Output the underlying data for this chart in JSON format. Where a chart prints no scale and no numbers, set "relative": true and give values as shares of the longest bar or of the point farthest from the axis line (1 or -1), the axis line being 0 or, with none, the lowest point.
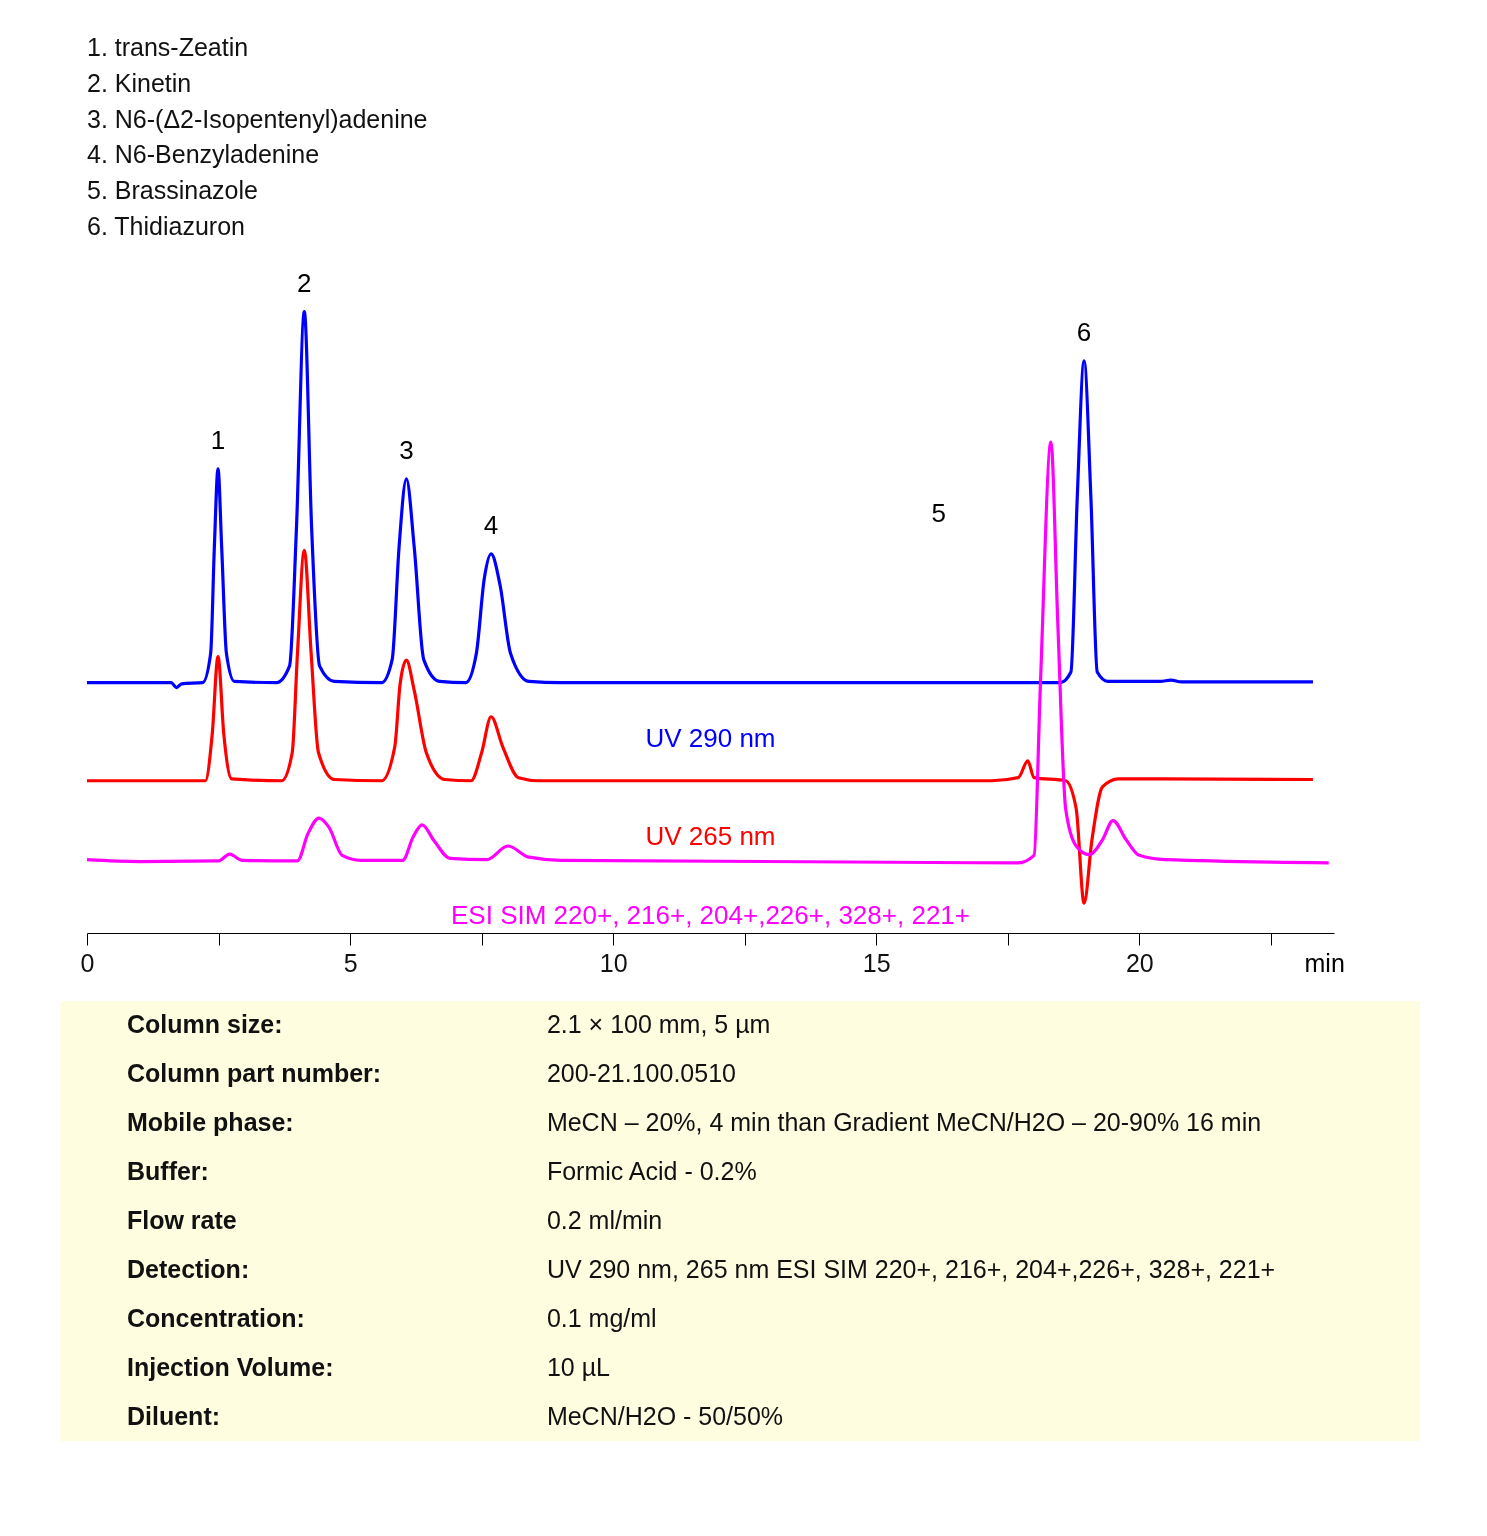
{
  "chart_data": {
    "type": "line",
    "relative": true,
    "xlabel": "min",
    "xlim": [
      0,
      23.7
    ],
    "xticks": [
      0,
      {
        "value": 2.5,
        "label": null
      },
      5,
      {
        "value": 7.5,
        "label": null
      },
      10,
      {
        "value": 12.5,
        "label": null
      },
      15,
      {
        "value": 17.5,
        "label": null
      },
      20,
      {
        "value": 22.5,
        "label": null
      }
    ],
    "grid": false,
    "legend": false,
    "marker": "none",
    "line_style": "solid",
    "series": [
      {
        "name": "UV 290 nm",
        "color": "#0000ff",
        "x": [
          0,
          1.6,
          1.7,
          1.8,
          2.2,
          2.35,
          2.42,
          2.49,
          2.56,
          2.65,
          2.8,
          3.6,
          3.85,
          3.98,
          4.13,
          4.27,
          4.42,
          4.7,
          5.6,
          5.8,
          5.93,
          6.07,
          6.22,
          6.4,
          6.7,
          7.2,
          7.4,
          7.55,
          7.68,
          7.85,
          8.05,
          8.4,
          9.0,
          18.5,
          18.7,
          18.82,
          18.95,
          19.08,
          19.2,
          19.4,
          20.4,
          20.6,
          20.8,
          23.3
        ],
        "values": [
          0.403,
          0.403,
          0.395,
          0.401,
          0.403,
          0.45,
          0.62,
          0.747,
          0.62,
          0.45,
          0.405,
          0.403,
          0.43,
          0.65,
          1.0,
          0.65,
          0.43,
          0.405,
          0.403,
          0.44,
          0.62,
          0.731,
          0.62,
          0.44,
          0.405,
          0.403,
          0.45,
          0.57,
          0.61,
          0.56,
          0.45,
          0.405,
          0.403,
          0.403,
          0.42,
          0.7,
          0.921,
          0.7,
          0.42,
          0.405,
          0.405,
          0.407,
          0.404,
          0.404
        ]
      },
      {
        "name": "UV 265 nm",
        "color": "#ff0000",
        "x": [
          0,
          2.25,
          2.38,
          2.49,
          2.6,
          2.75,
          3.7,
          3.9,
          4.0,
          4.13,
          4.26,
          4.4,
          4.7,
          5.6,
          5.85,
          5.95,
          6.07,
          6.22,
          6.45,
          6.8,
          7.3,
          7.5,
          7.68,
          7.9,
          8.2,
          8.6,
          17.2,
          17.7,
          17.88,
          18.0,
          18.6,
          18.8,
          18.95,
          19.1,
          19.3,
          19.6,
          20.4,
          23.3
        ],
        "values": [
          0.245,
          0.245,
          0.32,
          0.445,
          0.32,
          0.248,
          0.245,
          0.29,
          0.45,
          0.616,
          0.45,
          0.29,
          0.247,
          0.245,
          0.3,
          0.4,
          0.439,
          0.39,
          0.29,
          0.247,
          0.245,
          0.29,
          0.348,
          0.3,
          0.25,
          0.245,
          0.245,
          0.25,
          0.277,
          0.25,
          0.245,
          0.2,
          0.048,
          0.15,
          0.235,
          0.248,
          0.248,
          0.247
        ]
      },
      {
        "name": "ESI SIM 220+, 216+, 204+,226+, 328+, 221+",
        "color": "#ff00ff",
        "x": [
          0,
          1,
          2.5,
          2.71,
          2.95,
          4.0,
          4.2,
          4.41,
          4.6,
          4.85,
          5.2,
          6.0,
          6.2,
          6.37,
          6.6,
          6.9,
          7.6,
          8.0,
          8.4,
          9,
          17.7,
          18.0,
          18.12,
          18.32,
          18.45,
          18.6,
          18.8,
          19.05,
          19.3,
          19.5,
          19.75,
          20.0,
          20.5,
          23.6
        ],
        "values": [
          0.118,
          0.115,
          0.116,
          0.127,
          0.117,
          0.116,
          0.16,
          0.185,
          0.17,
          0.125,
          0.117,
          0.117,
          0.155,
          0.174,
          0.148,
          0.12,
          0.118,
          0.14,
          0.122,
          0.117,
          0.113,
          0.125,
          0.4,
          0.79,
          0.5,
          0.2,
          0.14,
          0.126,
          0.15,
          0.181,
          0.15,
          0.125,
          0.118,
          0.113
        ]
      }
    ],
    "annotations": [
      "1.  trans-Zeatin",
      "2.  Kinetin",
      "3.  N6-(Δ2-Isopentenyl)adenine",
      "4.  N6-Benzyladenine",
      "5.  Brassinazole",
      "6.  Thidiazuron",
      {
        "text": "1",
        "x": 2.49,
        "y": 0.747
      },
      {
        "text": "2",
        "x": 4.13,
        "y": 1.0
      },
      {
        "text": "3",
        "x": 6.07,
        "y": 0.731
      },
      {
        "text": "4",
        "x": 7.68,
        "y": 0.61
      },
      {
        "text": "6",
        "x": 18.95,
        "y": 0.921
      },
      "5",
      "Column size:",
      "2.1 × 100 mm, 5 µm",
      "Column part number:",
      "200-21.100.0510",
      "Mobile phase:",
      "MeCN – 20%, 4 min than Gradient MeCN/H2O – 20-90% 16 min",
      "Buffer:",
      "Formic Acid  - 0.2%",
      "Flow rate",
      "0.2 ml/min",
      "Detection:",
      "UV 290 nm, 265 nm ESI SIM 220+, 216+, 204+,226+, 328+, 221+",
      "Concentration:",
      "0.1 mg/ml",
      "Injection Volume:",
      "10 µL",
      "Diluent:",
      "MeCN/H2O - 50/50%"
    ]
  }
}
